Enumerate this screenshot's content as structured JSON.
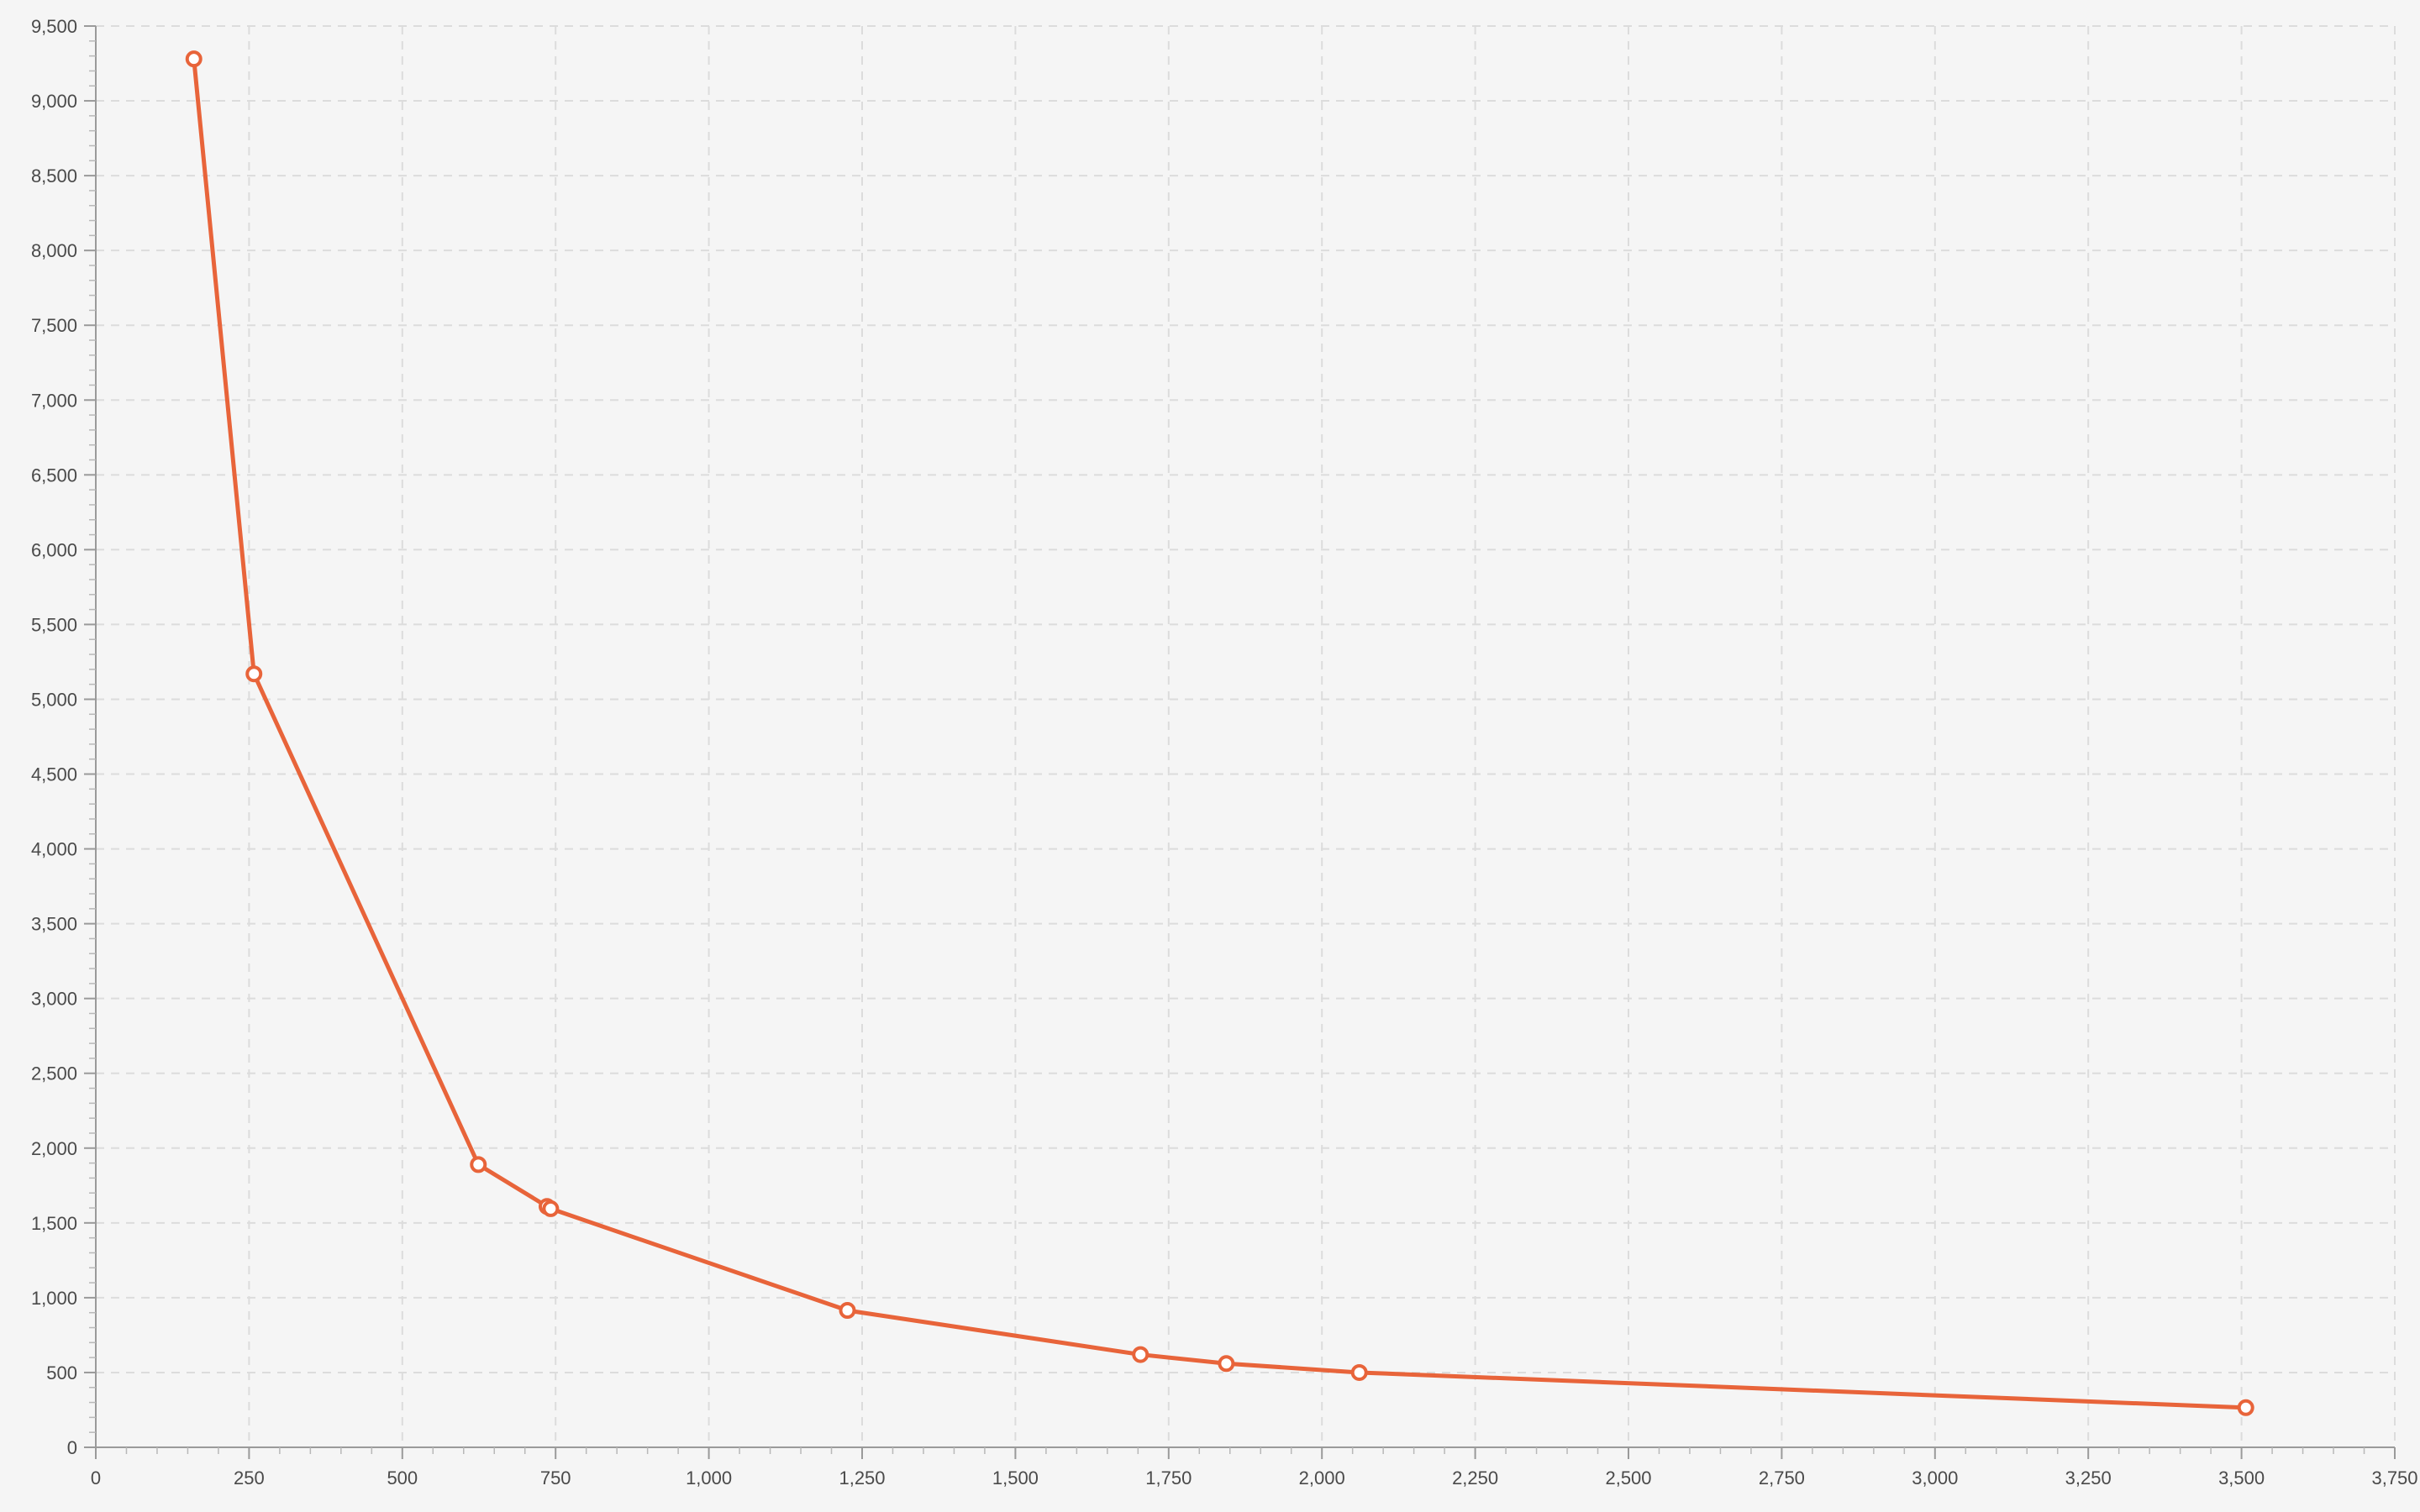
{
  "chart_data": {
    "type": "line",
    "title": "",
    "xlabel": "",
    "ylabel": "",
    "xlim": [
      0,
      3750
    ],
    "ylim": [
      0,
      9500
    ],
    "x_ticks": [
      0,
      250,
      500,
      750,
      1000,
      1250,
      1500,
      1750,
      2000,
      2250,
      2500,
      2750,
      3000,
      3250,
      3500,
      3750
    ],
    "x_tick_labels": [
      "0",
      "250",
      "500",
      "750",
      "1,000",
      "1,250",
      "1,500",
      "1,750",
      "2,000",
      "2,250",
      "2,500",
      "2,750",
      "3,000",
      "3,250",
      "3,500",
      "3,750"
    ],
    "y_ticks": [
      0,
      500,
      1000,
      1500,
      2000,
      2500,
      3000,
      3500,
      4000,
      4500,
      5000,
      5500,
      6000,
      6500,
      7000,
      7500,
      8000,
      8500,
      9000,
      9500
    ],
    "y_tick_labels": [
      "0",
      "500",
      "1,000",
      "1,500",
      "2,000",
      "2,500",
      "3,000",
      "3,500",
      "4,000",
      "4,500",
      "5,000",
      "5,500",
      "6,000",
      "6,500",
      "7,000",
      "7,500",
      "8,000",
      "8,500",
      "9,000",
      "9,500"
    ],
    "x_minor_step": 50,
    "y_minor_step": 100,
    "grid": true,
    "legend": "none",
    "series": [
      {
        "color": "#e8643a",
        "marker": "hollow-circle",
        "x": [
          160,
          258,
          624,
          736,
          742,
          1226,
          1704,
          1844,
          2061,
          3507
        ],
        "y": [
          9280,
          5170,
          1890,
          1610,
          1595,
          915,
          620,
          560,
          500,
          265
        ]
      }
    ]
  }
}
